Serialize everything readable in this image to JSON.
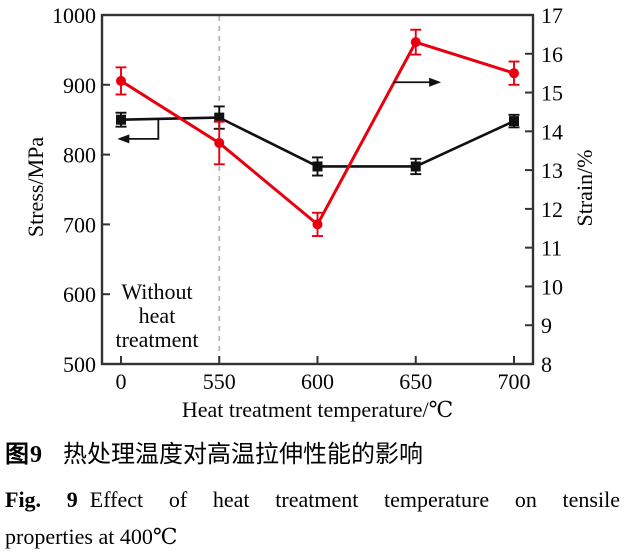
{
  "figure": {
    "caption_cn_label": "图9",
    "caption_cn_text": "热处理温度对高温拉伸性能的影响",
    "caption_en_label": "Fig. 9",
    "caption_en_line1": "Effect of heat treatment temperature on tensile",
    "caption_en_line2": "properties at 400℃"
  },
  "chart_data": {
    "type": "line",
    "categories": [
      "0",
      "550",
      "600",
      "650",
      "700"
    ],
    "xlabel": "Heat treatment temperature/℃",
    "ylabel_left": "Stress/MPa",
    "ylabel_right": "Strain/%",
    "ylim_left": [
      500,
      1000
    ],
    "yticks_left": [
      "500",
      "600",
      "700",
      "800",
      "900",
      "1000"
    ],
    "ylim_right": [
      8,
      17
    ],
    "yticks_right": [
      "8",
      "9",
      "10",
      "11",
      "12",
      "13",
      "14",
      "15",
      "16",
      "17"
    ],
    "grid": false,
    "legend": "none",
    "reference_line": {
      "category": "550",
      "style": "dashed",
      "color": "#b5b5b5"
    },
    "annotation": {
      "lines": [
        "Without",
        "heat",
        "treatment"
      ],
      "position": "lower-left"
    },
    "series": [
      {
        "name": "Stress",
        "axis": "left",
        "unit": "MPa",
        "color": "#111111",
        "marker": "square",
        "values": [
          850,
          853,
          783,
          783,
          848
        ],
        "errors": [
          10,
          16,
          13,
          11,
          9
        ],
        "axis_arrow": "left"
      },
      {
        "name": "Strain",
        "axis": "right",
        "unit": "%",
        "color": "#e8000f",
        "marker": "circle",
        "values": [
          15.3,
          13.7,
          11.6,
          16.3,
          15.5
        ],
        "errors": [
          0.35,
          0.55,
          0.3,
          0.32,
          0.3
        ],
        "axis_arrow": "right"
      }
    ]
  }
}
